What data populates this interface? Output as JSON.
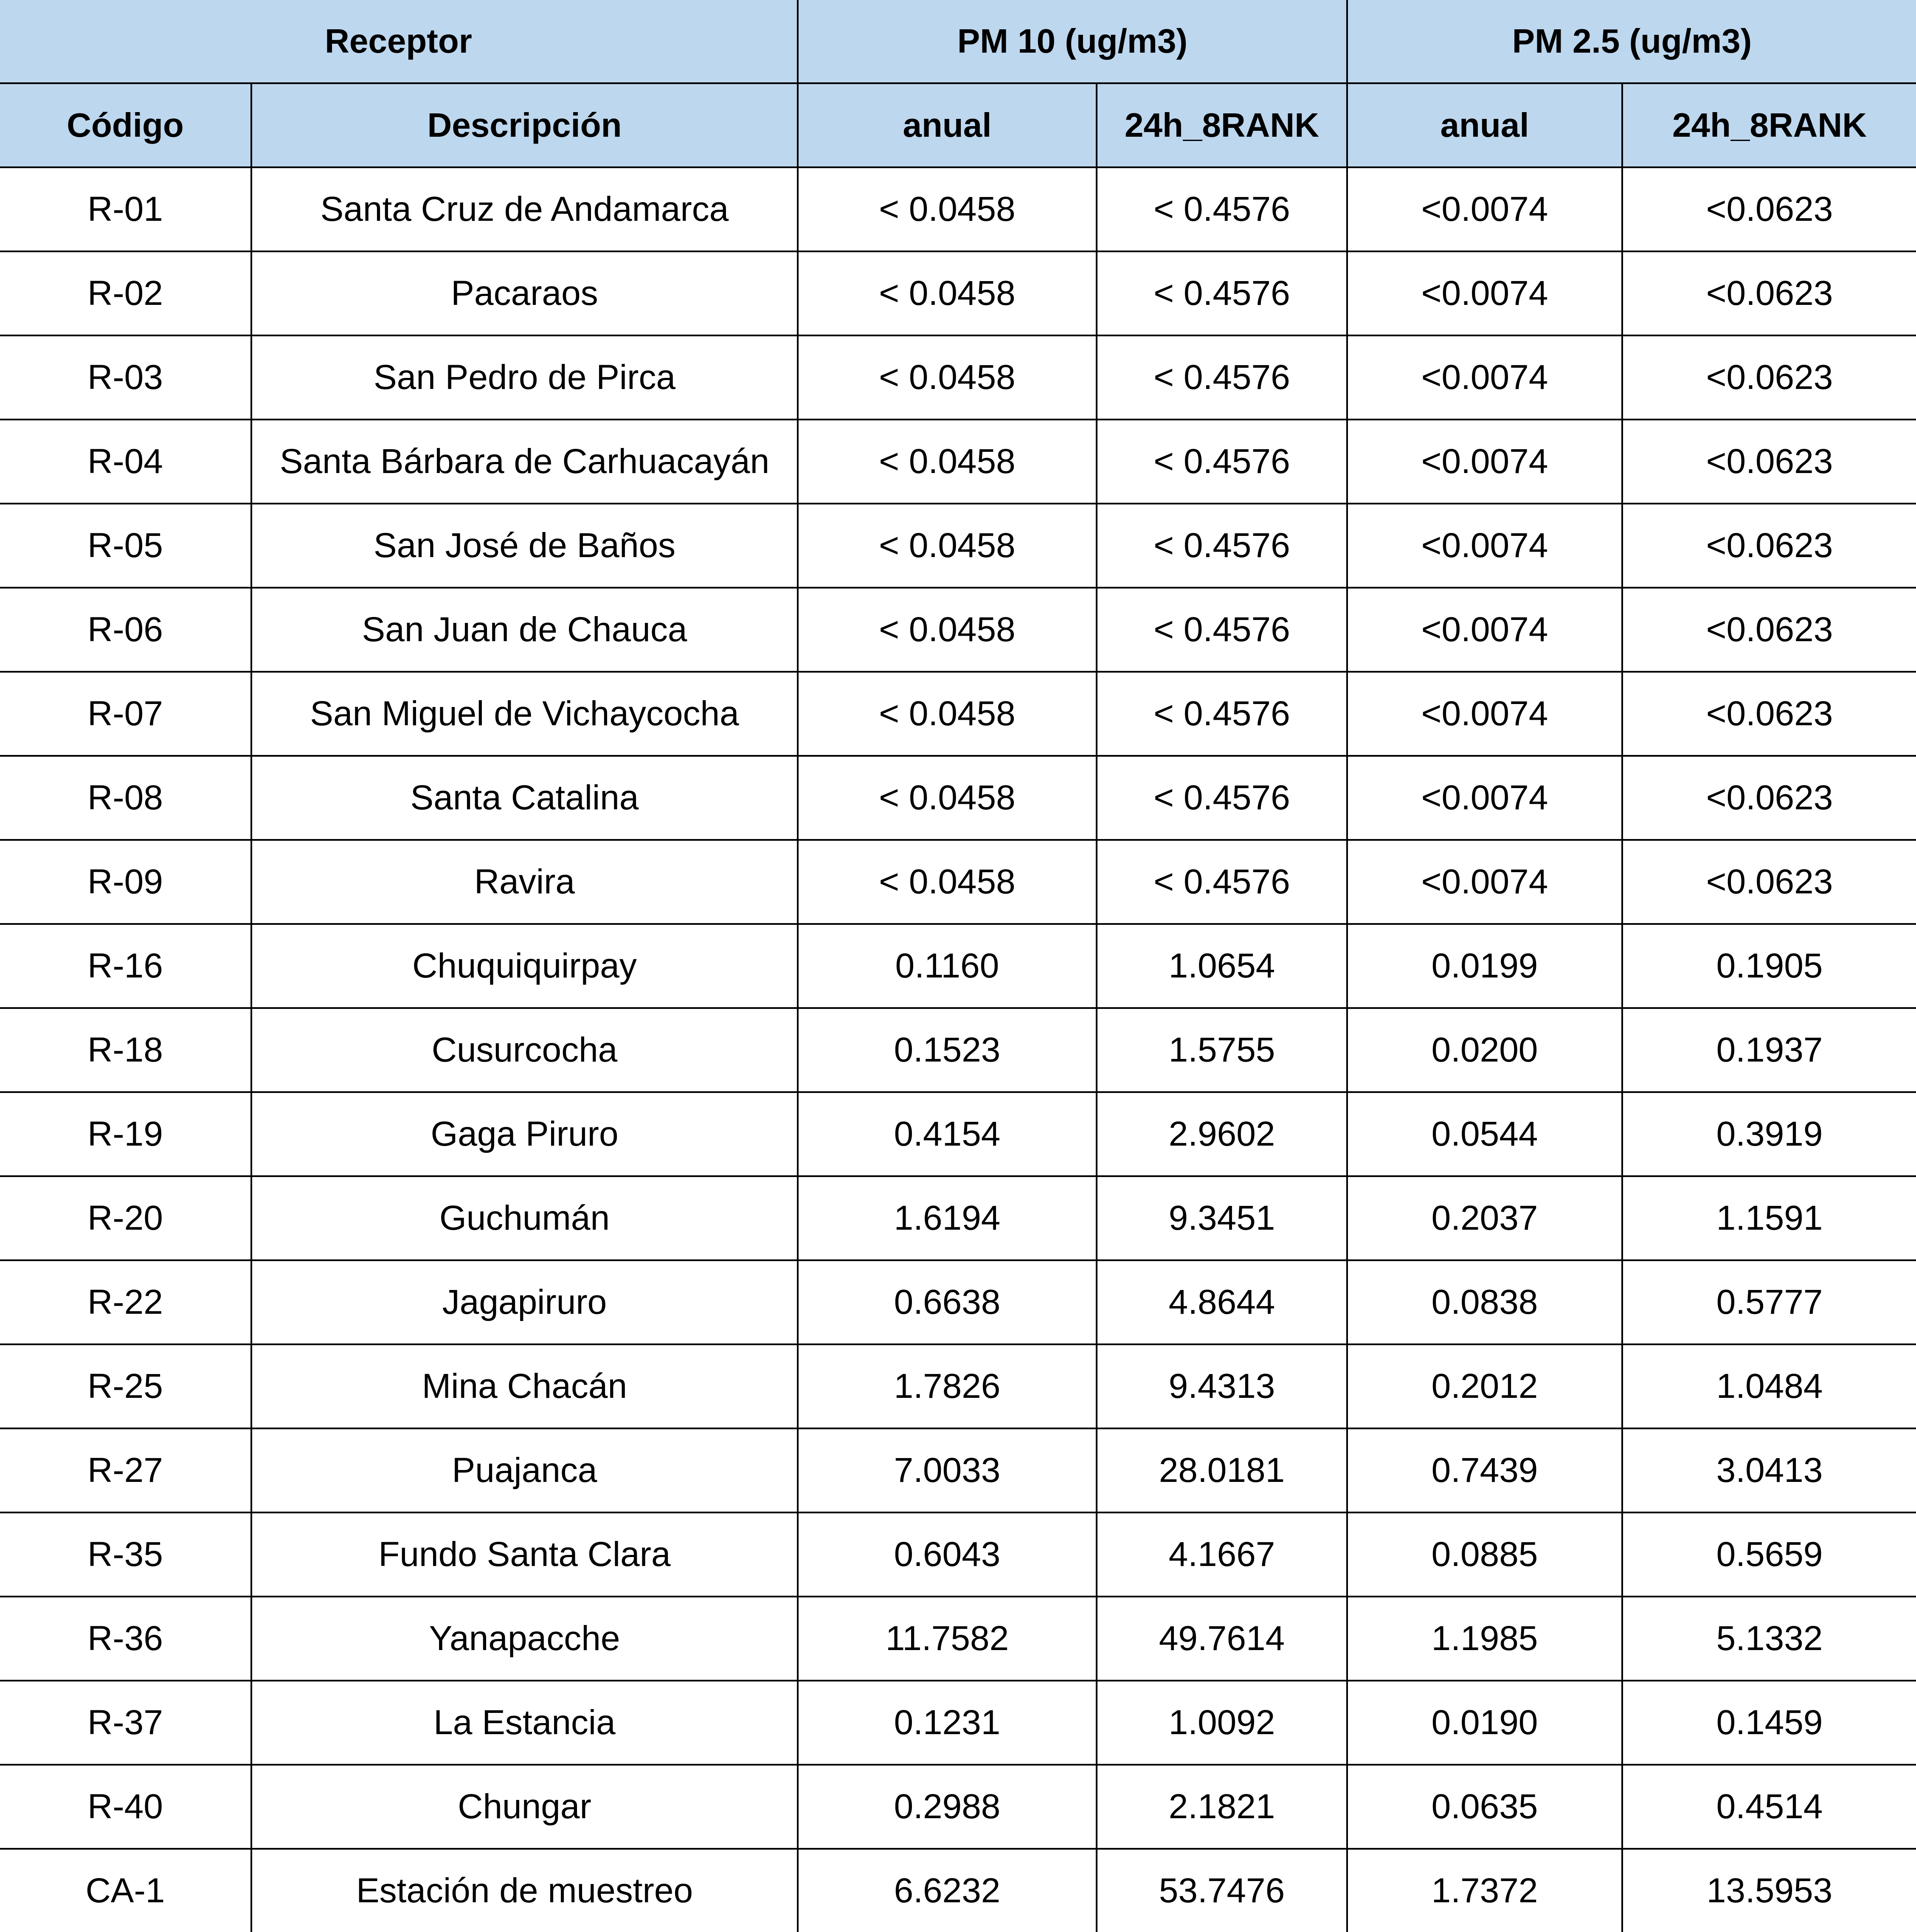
{
  "header": {
    "group_receptor": "Receptor",
    "group_pm10": "PM 10 (ug/m3)",
    "group_pm25": "PM 2.5 (ug/m3)",
    "col_codigo": "Código",
    "col_descripcion": "Descripción",
    "col_pm10_anual": "anual",
    "col_pm10_24h": "24h_8RANK",
    "col_pm25_anual": "anual",
    "col_pm25_24h": "24h_8RANK"
  },
  "rows": [
    {
      "codigo": "R-01",
      "descripcion": "Santa Cruz de Andamarca",
      "pm10_anual": "< 0.0458",
      "pm10_24h": "< 0.4576",
      "pm25_anual": "<0.0074",
      "pm25_24h": "<0.0623"
    },
    {
      "codigo": "R-02",
      "descripcion": "Pacaraos",
      "pm10_anual": "< 0.0458",
      "pm10_24h": "< 0.4576",
      "pm25_anual": "<0.0074",
      "pm25_24h": "<0.0623"
    },
    {
      "codigo": "R-03",
      "descripcion": "San Pedro de Pirca",
      "pm10_anual": "< 0.0458",
      "pm10_24h": "< 0.4576",
      "pm25_anual": "<0.0074",
      "pm25_24h": "<0.0623"
    },
    {
      "codigo": "R-04",
      "descripcion": "Santa Bárbara de Carhuacayán",
      "pm10_anual": "< 0.0458",
      "pm10_24h": "< 0.4576",
      "pm25_anual": "<0.0074",
      "pm25_24h": "<0.0623"
    },
    {
      "codigo": "R-05",
      "descripcion": "San José de Baños",
      "pm10_anual": "< 0.0458",
      "pm10_24h": "< 0.4576",
      "pm25_anual": "<0.0074",
      "pm25_24h": "<0.0623"
    },
    {
      "codigo": "R-06",
      "descripcion": "San Juan de Chauca",
      "pm10_anual": "< 0.0458",
      "pm10_24h": "< 0.4576",
      "pm25_anual": "<0.0074",
      "pm25_24h": "<0.0623"
    },
    {
      "codigo": "R-07",
      "descripcion": "San Miguel de Vichaycocha",
      "pm10_anual": "< 0.0458",
      "pm10_24h": "< 0.4576",
      "pm25_anual": "<0.0074",
      "pm25_24h": "<0.0623"
    },
    {
      "codigo": "R-08",
      "descripcion": "Santa Catalina",
      "pm10_anual": "< 0.0458",
      "pm10_24h": "< 0.4576",
      "pm25_anual": "<0.0074",
      "pm25_24h": "<0.0623"
    },
    {
      "codigo": "R-09",
      "descripcion": "Ravira",
      "pm10_anual": "< 0.0458",
      "pm10_24h": "< 0.4576",
      "pm25_anual": "<0.0074",
      "pm25_24h": "<0.0623"
    },
    {
      "codigo": "R-16",
      "descripcion": "Chuquiquirpay",
      "pm10_anual": "0.1160",
      "pm10_24h": "1.0654",
      "pm25_anual": "0.0199",
      "pm25_24h": "0.1905"
    },
    {
      "codigo": "R-18",
      "descripcion": "Cusurcocha",
      "pm10_anual": "0.1523",
      "pm10_24h": "1.5755",
      "pm25_anual": "0.0200",
      "pm25_24h": "0.1937"
    },
    {
      "codigo": "R-19",
      "descripcion": "Gaga Piruro",
      "pm10_anual": "0.4154",
      "pm10_24h": "2.9602",
      "pm25_anual": "0.0544",
      "pm25_24h": "0.3919"
    },
    {
      "codigo": "R-20",
      "descripcion": "Guchumán",
      "pm10_anual": "1.6194",
      "pm10_24h": "9.3451",
      "pm25_anual": "0.2037",
      "pm25_24h": "1.1591"
    },
    {
      "codigo": "R-22",
      "descripcion": "Jagapiruro",
      "pm10_anual": "0.6638",
      "pm10_24h": "4.8644",
      "pm25_anual": "0.0838",
      "pm25_24h": "0.5777"
    },
    {
      "codigo": "R-25",
      "descripcion": "Mina Chacán",
      "pm10_anual": "1.7826",
      "pm10_24h": "9.4313",
      "pm25_anual": "0.2012",
      "pm25_24h": "1.0484"
    },
    {
      "codigo": "R-27",
      "descripcion": "Puajanca",
      "pm10_anual": "7.0033",
      "pm10_24h": "28.0181",
      "pm25_anual": "0.7439",
      "pm25_24h": "3.0413"
    },
    {
      "codigo": "R-35",
      "descripcion": "Fundo Santa Clara",
      "pm10_anual": "0.6043",
      "pm10_24h": "4.1667",
      "pm25_anual": "0.0885",
      "pm25_24h": "0.5659"
    },
    {
      "codigo": "R-36",
      "descripcion": "Yanapacche",
      "pm10_anual": "11.7582",
      "pm10_24h": "49.7614",
      "pm25_anual": "1.1985",
      "pm25_24h": "5.1332"
    },
    {
      "codigo": "R-37",
      "descripcion": "La Estancia",
      "pm10_anual": "0.1231",
      "pm10_24h": "1.0092",
      "pm25_anual": "0.0190",
      "pm25_24h": "0.1459"
    },
    {
      "codigo": "R-40",
      "descripcion": "Chungar",
      "pm10_anual": "0.2988",
      "pm10_24h": "2.1821",
      "pm25_anual": "0.0635",
      "pm25_24h": "0.4514"
    },
    {
      "codigo": "CA-1",
      "descripcion": "Estación de muestreo",
      "pm10_anual": "6.6232",
      "pm10_24h": "53.7476",
      "pm25_anual": "1.7372",
      "pm25_24h": "13.5953"
    }
  ]
}
